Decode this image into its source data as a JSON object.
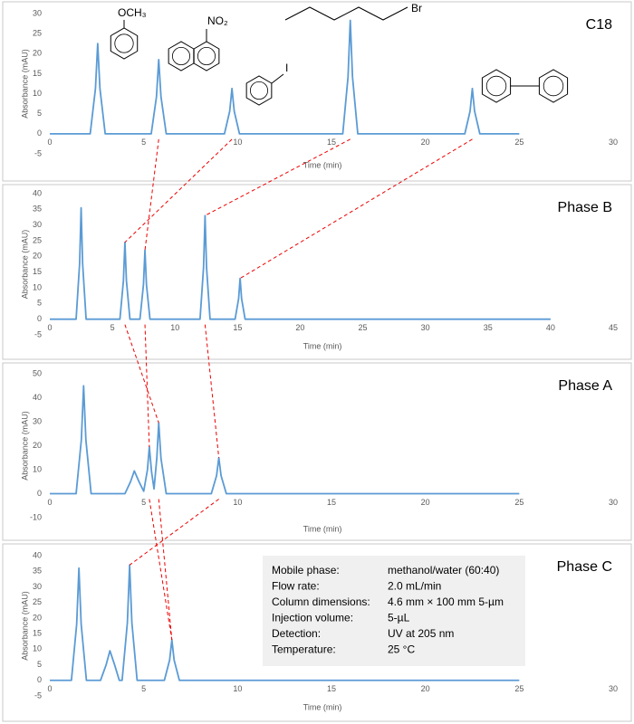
{
  "chart_data": [
    {
      "type": "line",
      "title": "C18",
      "y_label": "Absorbance (mAU)",
      "x_label": "Time (min)",
      "annotations": [
        "OCH₃",
        "NO₂",
        "I",
        "Br"
      ],
      "xlim": [
        0,
        30
      ],
      "xticks": [
        0,
        5,
        10,
        15,
        20,
        25,
        30
      ],
      "ylim": [
        -5,
        30
      ],
      "yticks": [
        -5,
        0,
        5,
        10,
        15,
        20,
        25,
        30
      ],
      "grid": false,
      "x": [
        0,
        2.15,
        2.43,
        2.55,
        2.67,
        2.95,
        5.4,
        5.68,
        5.8,
        5.92,
        6.2,
        9.3,
        9.58,
        9.7,
        9.82,
        10.1,
        15.6,
        15.88,
        16,
        16.12,
        16.4,
        22.1,
        22.38,
        22.5,
        22.62,
        22.9,
        25
      ],
      "series": [
        {
          "color": "#5b9bd5",
          "values": [
            0,
            0,
            11.25,
            22.5,
            11.25,
            0,
            0,
            9.25,
            18.5,
            9.25,
            0,
            0,
            5.65,
            11.3,
            5.65,
            0,
            0,
            14.15,
            28.3,
            14.15,
            0,
            0,
            5.65,
            11.3,
            5.65,
            0,
            0
          ]
        }
      ]
    },
    {
      "type": "line",
      "title": "Phase B",
      "y_label": "Absorbance (mAU)",
      "x_label": "Time (min)",
      "xlim": [
        0,
        45
      ],
      "xticks": [
        0,
        5,
        10,
        15,
        20,
        25,
        30,
        35,
        40,
        45
      ],
      "ylim": [
        -5,
        40
      ],
      "yticks": [
        -5,
        0,
        5,
        10,
        15,
        20,
        25,
        30,
        35,
        40
      ],
      "grid": false,
      "x": [
        0,
        2.1,
        2.38,
        2.5,
        2.62,
        2.9,
        5.6,
        5.88,
        6,
        6.12,
        6.4,
        7.2,
        7.48,
        7.6,
        7.72,
        8,
        12,
        12.28,
        12.4,
        12.52,
        12.8,
        14.8,
        15.08,
        15.2,
        15.32,
        15.6,
        40
      ],
      "series": [
        {
          "color": "#5b9bd5",
          "values": [
            0,
            0,
            17.75,
            35.5,
            17.75,
            0,
            0,
            12.25,
            24.5,
            12.25,
            0,
            0,
            11,
            22,
            11,
            0,
            0,
            16.5,
            33,
            16.5,
            0,
            0,
            6.5,
            13,
            6.5,
            0,
            0
          ]
        }
      ]
    },
    {
      "type": "line",
      "title": "Phase A",
      "y_label": "Absorbance (mAU)",
      "x_label": "Time (min)",
      "xlim": [
        0,
        30
      ],
      "xticks": [
        0,
        5,
        10,
        15,
        20,
        25,
        30
      ],
      "ylim": [
        -10,
        50
      ],
      "yticks": [
        -10,
        0,
        10,
        20,
        30,
        40,
        50
      ],
      "grid": false,
      "x": [
        0,
        1.4,
        1.68,
        1.8,
        1.92,
        2.2,
        4,
        4.3,
        4.5,
        4.75,
        5,
        5.2,
        5.3,
        5.42,
        5.55,
        5.7,
        5.8,
        5.92,
        6.2,
        8.6,
        8.88,
        9,
        9.12,
        9.4,
        25
      ],
      "series": [
        {
          "color": "#5b9bd5",
          "values": [
            0,
            0,
            22.5,
            45,
            22.5,
            0,
            0,
            5,
            9.5,
            5,
            1,
            10,
            19.5,
            9,
            2,
            15,
            29.5,
            14.75,
            0,
            0,
            7.5,
            15,
            7.5,
            0,
            0
          ]
        }
      ]
    },
    {
      "type": "line",
      "title": "Phase C",
      "y_label": "Absorbance (mAU)",
      "x_label": "Time (min)",
      "xlim": [
        0,
        30
      ],
      "xticks": [
        0,
        5,
        10,
        15,
        20,
        25,
        30
      ],
      "ylim": [
        -5,
        40
      ],
      "yticks": [
        -5,
        0,
        5,
        10,
        15,
        20,
        25,
        30,
        35,
        40
      ],
      "grid": false,
      "x": [
        0,
        1.15,
        1.43,
        1.55,
        1.67,
        1.95,
        2.7,
        3,
        3.2,
        3.45,
        3.7,
        3.85,
        4.13,
        4.25,
        4.37,
        4.65,
        6.1,
        6.38,
        6.5,
        6.62,
        6.9,
        25
      ],
      "series": [
        {
          "color": "#5b9bd5",
          "values": [
            0,
            0,
            18,
            36,
            18,
            0,
            0,
            5,
            9.5,
            5,
            0,
            0,
            18.5,
            37,
            18.5,
            0,
            0,
            6.5,
            13,
            6.5,
            0,
            0
          ]
        }
      ],
      "conditions": [
        [
          "Mobile phase:",
          "methanol/water (60:40)"
        ],
        [
          "Flow rate:",
          "2.0 mL/min"
        ],
        [
          "Column dimensions:",
          "4.6 mm × 100 mm 5-µm"
        ],
        [
          "Injection volume:",
          "5-µL"
        ],
        [
          "Detection:",
          "UV at 205 nm"
        ],
        [
          "Temperature:",
          "25 °C"
        ]
      ]
    }
  ]
}
